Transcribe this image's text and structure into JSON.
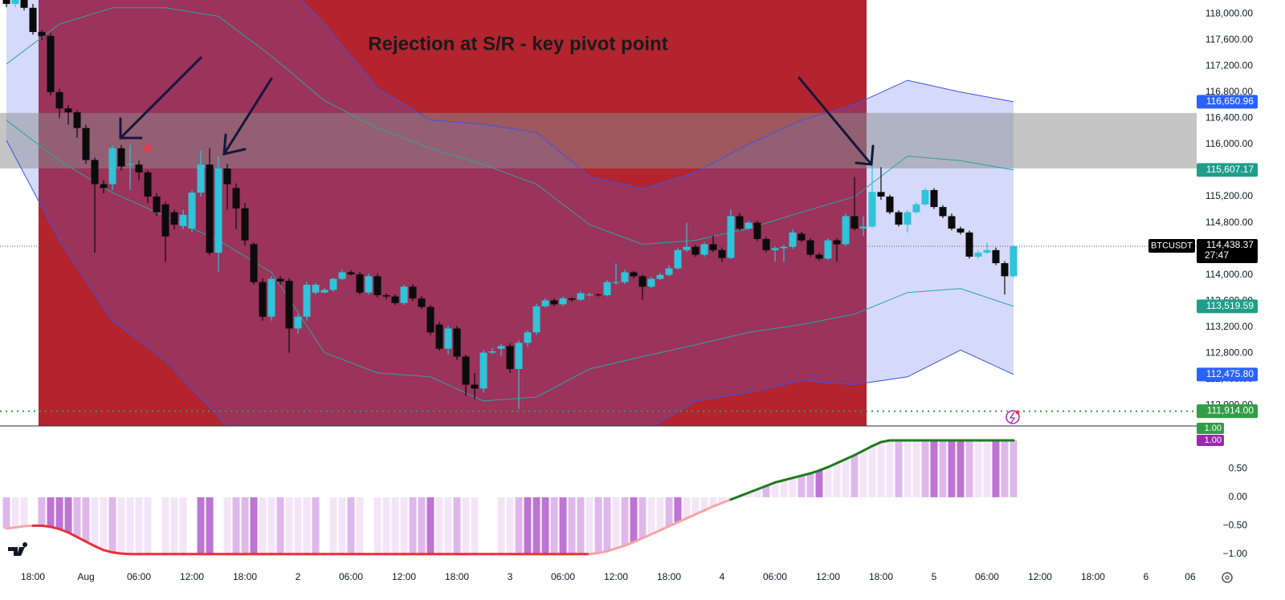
{
  "chart_data": {
    "type": "candlestick",
    "symbol": "BTCUSDT",
    "annotation": "Rejection at S/R - key pivot point",
    "xlim": [
      -0.73,
      134.73
    ],
    "xticks": [
      {
        "value": 3,
        "label": "18:00"
      },
      {
        "value": 9,
        "label": "Aug"
      },
      {
        "value": 15,
        "label": "06:00"
      },
      {
        "value": 21,
        "label": "12:00"
      },
      {
        "value": 27,
        "label": "18:00"
      },
      {
        "value": 33,
        "label": "2"
      },
      {
        "value": 39,
        "label": "06:00"
      },
      {
        "value": 45,
        "label": "12:00"
      },
      {
        "value": 51,
        "label": "18:00"
      },
      {
        "value": 57,
        "label": "3"
      },
      {
        "value": 63,
        "label": "06:00"
      },
      {
        "value": 69,
        "label": "12:00"
      },
      {
        "value": 75,
        "label": "18:00"
      },
      {
        "value": 81,
        "label": "4"
      },
      {
        "value": 87,
        "label": "06:00"
      },
      {
        "value": 93,
        "label": "12:00"
      },
      {
        "value": 99,
        "label": "18:00"
      },
      {
        "value": 105,
        "label": "5"
      },
      {
        "value": 111,
        "label": "06:00"
      },
      {
        "value": 117,
        "label": "12:00"
      },
      {
        "value": 123,
        "label": "18:00"
      },
      {
        "value": 129,
        "label": "6"
      },
      {
        "value": 134,
        "label": "06"
      }
    ],
    "ylim": [
      111700,
      118210
    ],
    "yticks": [
      {
        "value": 118000,
        "label": "118,000.00"
      },
      {
        "value": 117600,
        "label": "117,600.00"
      },
      {
        "value": 117200,
        "label": "117,200.00"
      },
      {
        "value": 116800,
        "label": "116,800.00"
      },
      {
        "value": 116400,
        "label": "116,400.00"
      },
      {
        "value": 116000,
        "label": "116,000.00"
      },
      {
        "value": 115600,
        "label": "115,600.00"
      },
      {
        "value": 115200,
        "label": "115,200.00"
      },
      {
        "value": 114800,
        "label": "114,800.00"
      },
      {
        "value": 114400,
        "label": "114,400.00"
      },
      {
        "value": 114000,
        "label": "114,000.00"
      },
      {
        "value": 113600,
        "label": "113,600.00"
      },
      {
        "value": 113200,
        "label": "113,200.00"
      },
      {
        "value": 112800,
        "label": "112,800.00"
      },
      {
        "value": 112400,
        "label": "112,400.00"
      },
      {
        "value": 112000,
        "label": "112,000.00"
      }
    ],
    "grid": false,
    "up_color": "#2ec4d9",
    "down_color": "#0b0b0b",
    "open": [
      118350,
      118150,
      118300,
      118090,
      117720,
      117660,
      116800,
      116550,
      116490,
      116250,
      115760,
      115390,
      115390,
      115940,
      115690,
      115690,
      115570,
      115200,
      115080,
      114960,
      114750,
      114710,
      115260,
      115690,
      114340,
      115630,
      115330,
      115020,
      114470,
      113890,
      113360,
      113940,
      113910,
      113180,
      113360,
      113730,
      113730,
      113770,
      113940,
      114040,
      114010,
      113730,
      113980,
      113690,
      113670,
      113570,
      113820,
      113640,
      113510,
      113240,
      112870,
      113180,
      112750,
      112320,
      112260,
      112810,
      112870,
      112910,
      112560,
      112960,
      113120,
      113520,
      113610,
      113550,
      113640,
      113620,
      113690,
      113700,
      113690,
      113890,
      113890,
      114040,
      113980,
      113820,
      113940,
      114000,
      114100,
      114380,
      114430,
      114310,
      114470,
      114380,
      114260,
      114900,
      114710,
      114800,
      114550,
      114380,
      114410,
      114430,
      114630,
      114530,
      114310,
      114250,
      114530,
      114470,
      114900,
      114710,
      114740,
      115270,
      115200,
      114960,
      114770,
      114960,
      115080,
      115300,
      115040,
      114900,
      114710,
      114650,
      114280,
      114340,
      114380,
      114180,
      113980
    ],
    "high": [
      118400,
      118350,
      118350,
      118150,
      117750,
      117700,
      116850,
      116600,
      116520,
      116300,
      115800,
      115450,
      115980,
      115990,
      115990,
      115750,
      115600,
      115250,
      115120,
      115000,
      115000,
      115300,
      115900,
      115940,
      115820,
      115700,
      115400,
      115100,
      114500,
      113950,
      113980,
      113980,
      113950,
      113400,
      113900,
      113880,
      113800,
      113960,
      114080,
      114070,
      114050,
      114020,
      114020,
      113720,
      113700,
      113850,
      113860,
      113680,
      113540,
      113280,
      113220,
      113220,
      112780,
      112500,
      112850,
      112880,
      112950,
      112950,
      113000,
      113150,
      113560,
      113640,
      113640,
      113670,
      113660,
      113750,
      113730,
      113720,
      113920,
      114180,
      114080,
      114060,
      114000,
      113970,
      114030,
      114150,
      114420,
      114800,
      114460,
      114500,
      114600,
      114420,
      115000,
      114950,
      114830,
      114830,
      114580,
      114440,
      114460,
      114700,
      114660,
      114560,
      114340,
      114560,
      114560,
      114940,
      115500,
      114900,
      115750,
      115650,
      115230,
      114990,
      114990,
      115110,
      115330,
      115330,
      115070,
      114940,
      114740,
      114680,
      114370,
      114500,
      114420,
      114210,
      114450
    ],
    "low": [
      118100,
      118100,
      118050,
      117680,
      117600,
      116750,
      116400,
      116300,
      116100,
      115700,
      114340,
      115250,
      115300,
      115600,
      115300,
      115450,
      115100,
      114900,
      114200,
      114700,
      114700,
      114650,
      115200,
      114300,
      114050,
      115000,
      114700,
      114450,
      113850,
      113300,
      113300,
      113850,
      112810,
      113100,
      113300,
      113700,
      113720,
      113740,
      113920,
      113990,
      113700,
      113700,
      113650,
      113630,
      113540,
      113540,
      113600,
      113480,
      113080,
      112840,
      112780,
      112700,
      112150,
      112100,
      112200,
      112790,
      112750,
      112500,
      111950,
      112900,
      113080,
      113500,
      113520,
      113520,
      113590,
      113600,
      113670,
      113670,
      113670,
      113850,
      113860,
      113950,
      113620,
      113800,
      113920,
      113980,
      114080,
      114350,
      114280,
      114280,
      114350,
      114200,
      114240,
      114680,
      114690,
      114520,
      114350,
      114200,
      114200,
      114400,
      114500,
      114280,
      114220,
      114230,
      114200,
      114440,
      114680,
      114600,
      114720,
      115150,
      114930,
      114740,
      114650,
      114940,
      115060,
      115010,
      114870,
      114680,
      114620,
      114250,
      114250,
      114320,
      114150,
      113700,
      113960
    ],
    "close": [
      118150,
      118300,
      118090,
      117720,
      117660,
      116800,
      116550,
      116490,
      116250,
      115760,
      115390,
      115330,
      115940,
      115660,
      115700,
      115570,
      115200,
      114960,
      114590,
      114770,
      114920,
      115260,
      115690,
      114340,
      115630,
      115390,
      115020,
      114530,
      113890,
      113360,
      113940,
      113900,
      113180,
      113360,
      113850,
      113850,
      113770,
      113940,
      114040,
      114010,
      113730,
      113980,
      113690,
      113670,
      113570,
      113820,
      113640,
      113510,
      113120,
      112870,
      113180,
      112750,
      112320,
      112260,
      112810,
      112830,
      112910,
      112560,
      112960,
      113120,
      113520,
      113610,
      113550,
      113640,
      113620,
      113720,
      113700,
      113690,
      113890,
      113890,
      114040,
      113980,
      113820,
      113940,
      114000,
      114100,
      114380,
      114430,
      114310,
      114470,
      114380,
      114260,
      114900,
      114710,
      114800,
      114550,
      114380,
      114410,
      114430,
      114650,
      114530,
      114310,
      114250,
      114530,
      114470,
      114900,
      114710,
      114740,
      115270,
      115200,
      114960,
      114770,
      114960,
      115080,
      115300,
      115040,
      114900,
      114710,
      114650,
      114280,
      114340,
      114380,
      114180,
      113980,
      114438.37
    ],
    "bands": {
      "x": [
        0,
        6,
        12,
        18,
        24,
        30,
        36,
        42,
        48,
        54,
        60,
        66,
        72,
        78,
        84,
        90,
        96,
        102,
        108,
        114
      ],
      "upper": [
        118450,
        119680,
        119930,
        119680,
        119190,
        118700,
        117840,
        116860,
        116370,
        116310,
        116180,
        115510,
        115320,
        115570,
        116000,
        116370,
        116610,
        116980,
        116800,
        116650.96
      ],
      "upper_inner": [
        117230,
        117840,
        118090,
        118090,
        117960,
        117350,
        116670,
        116250,
        115940,
        115690,
        115390,
        114770,
        114470,
        114530,
        114710,
        114960,
        115200,
        115820,
        115750,
        115607.17
      ],
      "lower_inner": [
        116370,
        115750,
        115260,
        114900,
        114530,
        114040,
        112810,
        112500,
        112440,
        112070,
        112130,
        112560,
        112750,
        112930,
        113120,
        113240,
        113400,
        113730,
        113790,
        113519.59
      ],
      "lower": [
        116060,
        114530,
        113300,
        112690,
        111830,
        110840,
        110230,
        109860,
        110230,
        110600,
        111090,
        111340,
        111580,
        112070,
        112200,
        112380,
        112320,
        112440,
        112850,
        112475.8
      ],
      "outer_color": "#3f51e8",
      "inner_color": "#2aa79b",
      "fill": "rgba(80,100,235,0.24)"
    },
    "zone": {
      "from": 115630,
      "to": 116480,
      "color": "rgba(140,140,140,0.5)"
    },
    "level": {
      "value": 111914,
      "label": "111,914.00",
      "color": "#2f9e44"
    },
    "price_badges": [
      {
        "value": 116650.96,
        "label": "116,650.96",
        "color": "#2962ff"
      },
      {
        "value": 115607.17,
        "label": "115,607.17",
        "color": "#1e9e8a"
      },
      {
        "value": 113519.59,
        "label": "113,519.59",
        "color": "#1e9e8a"
      },
      {
        "value": 112475.8,
        "label": "112,475.80",
        "color": "#2962ff"
      }
    ],
    "last_price": {
      "label": "114,438.37",
      "countdown": "27:47",
      "color": "#000000"
    },
    "indicator": {
      "ylim": [
        -1.13,
        1.24
      ],
      "yticks": [
        {
          "value": 0.5,
          "label": "0.50"
        },
        {
          "value": 0,
          "label": "0.00"
        },
        {
          "value": -0.5,
          "label": "−0.50"
        },
        {
          "value": -1,
          "label": "−1.00"
        }
      ],
      "values": [
        -0.55,
        -0.53,
        -0.51,
        -0.5,
        -0.5,
        -0.52,
        -0.56,
        -0.62,
        -0.7,
        -0.78,
        -0.86,
        -0.93,
        -0.97,
        -0.99,
        -1,
        -1,
        -1,
        -1,
        -1,
        -1,
        -1,
        -1,
        -1,
        -1,
        -1,
        -1,
        -1,
        -1,
        -1,
        -1,
        -1,
        -1,
        -1,
        -1,
        -1,
        -1,
        -1,
        -1,
        -1,
        -1,
        -1,
        -1,
        -1,
        -1,
        -1,
        -1,
        -1,
        -1,
        -1,
        -1,
        -1,
        -1,
        -1,
        -1,
        -1,
        -1,
        -1,
        -1,
        -1,
        -1,
        -1,
        -1,
        -1,
        -1,
        -1,
        -1,
        -1,
        -0.98,
        -0.95,
        -0.9,
        -0.85,
        -0.79,
        -0.72,
        -0.65,
        -0.58,
        -0.51,
        -0.44,
        -0.37,
        -0.3,
        -0.23,
        -0.16,
        -0.1,
        -0.04,
        0.02,
        0.08,
        0.14,
        0.2,
        0.26,
        0.3,
        0.34,
        0.38,
        0.42,
        0.47,
        0.53,
        0.6,
        0.67,
        0.74,
        0.82,
        0.9,
        0.97,
        1,
        1,
        1,
        1,
        1,
        1,
        1,
        1,
        1,
        1,
        1,
        1,
        1,
        1,
        1
      ],
      "intensity": [
        2,
        1,
        1,
        0,
        2,
        3,
        3,
        3,
        2,
        2,
        1,
        1,
        2,
        1,
        1,
        1,
        1,
        0,
        1,
        1,
        1,
        0,
        3,
        3,
        0,
        1,
        2,
        2,
        3,
        1,
        1,
        2,
        1,
        1,
        1,
        2,
        0,
        1,
        1,
        2,
        1,
        0,
        1,
        1,
        1,
        1,
        2,
        2,
        3,
        1,
        1,
        2,
        1,
        1,
        0,
        0,
        1,
        1,
        2,
        3,
        3,
        3,
        2,
        3,
        2,
        2,
        1,
        2,
        2,
        1,
        2,
        3,
        2,
        1,
        1,
        2,
        3,
        1,
        1,
        1,
        1,
        1,
        1,
        1,
        1,
        1,
        2,
        1,
        1,
        1,
        2,
        2,
        3,
        1,
        1,
        1,
        2,
        1,
        1,
        1,
        1,
        2,
        1,
        1,
        2,
        3,
        2,
        3,
        3,
        2,
        1,
        1,
        3,
        2,
        2
      ],
      "shades": [
        "#f3e5f7",
        "#dfb8eb",
        "#bd74d2"
      ],
      "line_colors": {
        "positive": "#1f7a1f",
        "rising": "#f6a5a5",
        "falling": "#e8313b"
      },
      "badges": [
        {
          "label": "1.00",
          "color": "#2f9e44"
        },
        {
          "label": "1.00",
          "color": "#9c27b0"
        }
      ]
    }
  }
}
